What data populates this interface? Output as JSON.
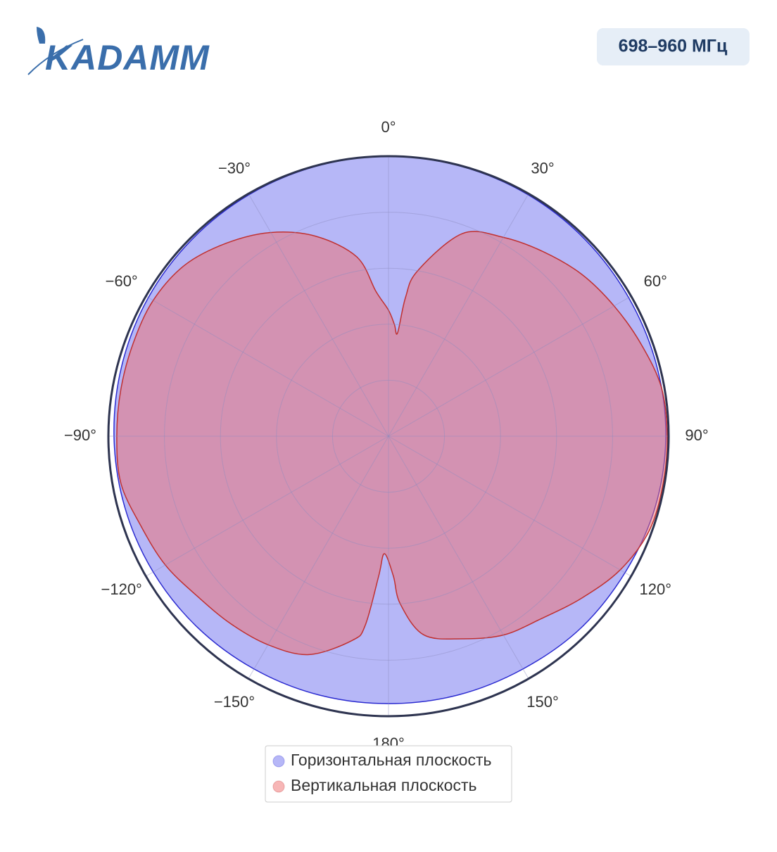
{
  "header": {
    "logo": "KADAMM",
    "badge": "698–960 МГц"
  },
  "chart_data": {
    "type": "polar",
    "direction": "clockwise",
    "rlim": [
      0,
      1
    ],
    "rticks": [
      0.2,
      0.4,
      0.6,
      0.8
    ],
    "thetaticks": [
      {
        "value": 0,
        "label": "0°"
      },
      {
        "value": 30,
        "label": "30°"
      },
      {
        "value": 60,
        "label": "60°"
      },
      {
        "value": 90,
        "label": "90°"
      },
      {
        "value": 120,
        "label": "120°"
      },
      {
        "value": 150,
        "label": "150°"
      },
      {
        "value": 180,
        "label": "180°"
      },
      {
        "value": -150,
        "label": "−150°"
      },
      {
        "value": -120,
        "label": "−120°"
      },
      {
        "value": -90,
        "label": "−90°"
      },
      {
        "value": -60,
        "label": "−60°"
      },
      {
        "value": -30,
        "label": "−30°"
      }
    ],
    "series": [
      {
        "name": "Горизонтальная плоскость",
        "color": "#2b2bd0",
        "fill": "rgba(110,112,240,0.5)",
        "theta": [
          -180,
          -165,
          -150,
          -135,
          -120,
          -105,
          -90,
          -75,
          -60,
          -45,
          -30,
          -15,
          0,
          15,
          30,
          45,
          60,
          75,
          90,
          105,
          120,
          135,
          150,
          165
        ],
        "values": [
          0.955,
          0.957,
          0.96,
          0.965,
          0.97,
          0.975,
          0.98,
          0.985,
          0.99,
          0.993,
          0.996,
          0.998,
          1.0,
          0.998,
          0.996,
          0.993,
          0.99,
          0.99,
          0.99,
          0.985,
          0.975,
          0.97,
          0.96,
          0.957
        ]
      },
      {
        "name": "Вертикальная плоскость",
        "color": "#c03030",
        "fill": "rgba(240,110,110,0.5)",
        "theta": [
          -178,
          -176,
          -173,
          -170,
          -160,
          -150,
          -140,
          -130,
          -120,
          -110,
          -100,
          -90,
          -80,
          -70,
          -60,
          -50,
          -40,
          -30,
          -20,
          -10,
          -5,
          0,
          3,
          5,
          7,
          10,
          20,
          30,
          40,
          50,
          60,
          70,
          80,
          90,
          100,
          110,
          120,
          130,
          140,
          150,
          160,
          170,
          176,
          178
        ],
        "values": [
          0.42,
          0.5,
          0.68,
          0.74,
          0.83,
          0.86,
          0.875,
          0.89,
          0.92,
          0.94,
          0.97,
          0.97,
          0.97,
          0.97,
          0.97,
          0.95,
          0.9,
          0.84,
          0.76,
          0.65,
          0.52,
          0.45,
          0.4,
          0.37,
          0.5,
          0.6,
          0.77,
          0.82,
          0.86,
          0.9,
          0.93,
          0.96,
          0.99,
          0.995,
          0.995,
          0.99,
          0.955,
          0.9,
          0.85,
          0.82,
          0.77,
          0.72,
          0.6,
          0.5
        ]
      }
    ]
  }
}
